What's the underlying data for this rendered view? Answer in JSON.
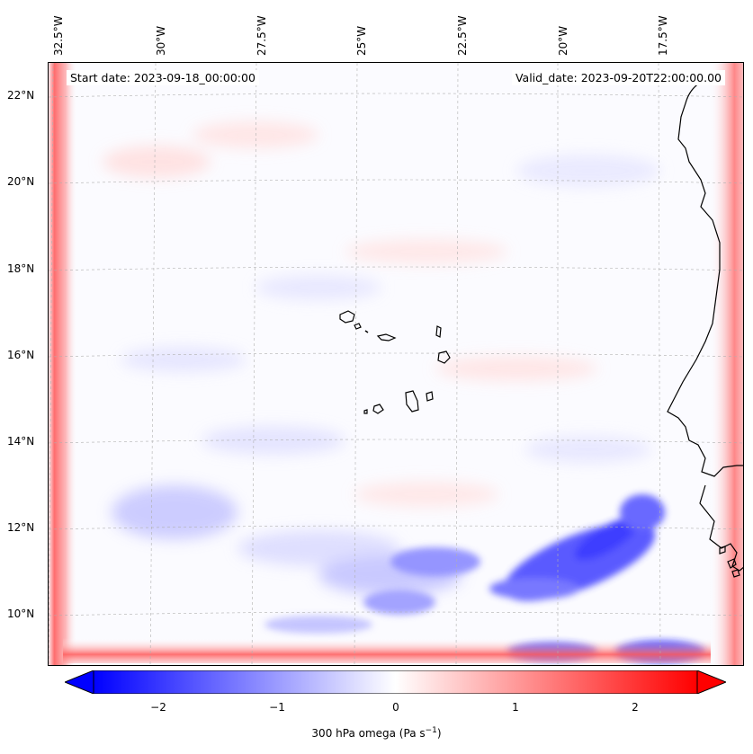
{
  "header": {
    "start_date": "Start date: 2023-09-18_00:00:00",
    "valid_date": "Valid_date: 2023-09-20T22:00:00.00"
  },
  "axes": {
    "longitude_labels": [
      "32.5°W",
      "30°W",
      "27.5°W",
      "25°W",
      "22.5°W",
      "20°W",
      "17.5°W"
    ],
    "latitude_labels": [
      "22°N",
      "20°N",
      "18°N",
      "16°N",
      "14°N",
      "12°N",
      "10°N"
    ]
  },
  "colorbar": {
    "ticks": [
      "−2",
      "−1",
      "0",
      "1",
      "2"
    ],
    "label_main": "300 hPa omega (Pa s",
    "label_sup": "−1",
    "label_end": ")",
    "range": [
      -2.6,
      2.6
    ],
    "colors": {
      "negative": "#0000ff",
      "zero": "#ffffff",
      "positive": "#ff0000"
    }
  },
  "map": {
    "field": "300 hPa omega",
    "units": "Pa s−1",
    "coastline_color": "#000000",
    "gridline_color": "#b0b0b0"
  }
}
